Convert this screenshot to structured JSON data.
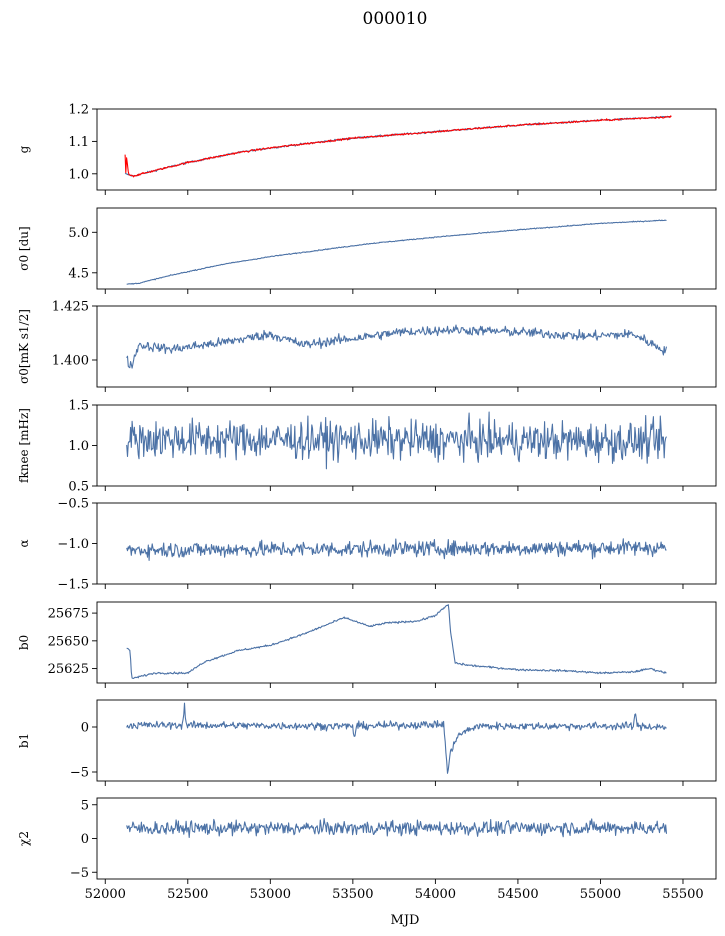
{
  "figure": {
    "title": "000010",
    "xlabel": "MJD"
  },
  "colors": {
    "series": "#4c72a6",
    "overlay": "#ff0000"
  },
  "chart_data": [
    {
      "type": "line",
      "panel": "g",
      "ylabel": "g",
      "xlim": [
        51950,
        55700
      ],
      "ylim": [
        0.95,
        1.2
      ],
      "yticks": [
        1.0,
        1.1,
        1.2
      ],
      "ytick_labels": [
        "1.0",
        "1.1",
        "1.2"
      ],
      "show_xtick_labels": false,
      "series": [
        {
          "color": "#4c72a6",
          "kind": "trend",
          "x": [
            52120,
            52170,
            52300,
            52500,
            52800,
            53000,
            53500,
            54000,
            54500,
            55000,
            55300,
            55430
          ],
          "y": [
            1.0,
            0.993,
            1.01,
            1.035,
            1.065,
            1.08,
            1.11,
            1.13,
            1.15,
            1.165,
            1.173,
            1.176
          ],
          "noise": 0.002
        },
        {
          "color": "#ff0000",
          "kind": "trend",
          "x": [
            52120,
            52125,
            52130,
            52140,
            52170,
            52300,
            52500,
            52800,
            53000,
            53500,
            54000,
            54500,
            55000,
            55300,
            55430
          ],
          "y": [
            1.06,
            1.0,
            1.055,
            1.0,
            0.993,
            1.01,
            1.035,
            1.065,
            1.08,
            1.11,
            1.13,
            1.15,
            1.165,
            1.173,
            1.176
          ],
          "noise": 0.002
        }
      ]
    },
    {
      "type": "line",
      "panel": "sigma0",
      "ylabel": "σ0 [du]",
      "xlim": [
        51950,
        55700
      ],
      "ylim": [
        4.3,
        5.3
      ],
      "yticks": [
        4.5,
        5.0
      ],
      "ytick_labels": [
        "4.5",
        "5.0"
      ],
      "show_xtick_labels": false,
      "series": [
        {
          "color": "#4c72a6",
          "kind": "trend",
          "x": [
            52130,
            52200,
            52400,
            52700,
            53000,
            53300,
            53600,
            54000,
            54500,
            55000,
            55400
          ],
          "y": [
            4.36,
            4.37,
            4.47,
            4.6,
            4.7,
            4.78,
            4.86,
            4.94,
            5.03,
            5.11,
            5.15
          ],
          "noise": 0.004
        }
      ]
    },
    {
      "type": "line",
      "panel": "sigma0-time",
      "ylabel": "σ0[mK s1/2]",
      "xlim": [
        51950,
        55700
      ],
      "ylim": [
        1.3875,
        1.425
      ],
      "yticks": [
        1.4,
        1.425
      ],
      "ytick_labels": [
        "1.400",
        "1.425"
      ],
      "show_xtick_labels": false,
      "series": [
        {
          "color": "#4c72a6",
          "kind": "trend",
          "x": [
            52130,
            52160,
            52200,
            52400,
            52700,
            53000,
            53200,
            53500,
            53800,
            54100,
            54500,
            54900,
            55200,
            55400
          ],
          "y": [
            1.4,
            1.397,
            1.407,
            1.405,
            1.408,
            1.412,
            1.407,
            1.41,
            1.413,
            1.414,
            1.413,
            1.411,
            1.412,
            1.404
          ],
          "noise": 0.0016
        }
      ]
    },
    {
      "type": "line",
      "panel": "fknee",
      "ylabel": "fknee [mHz]",
      "xlim": [
        51950,
        55700
      ],
      "ylim": [
        0.5,
        1.5
      ],
      "yticks": [
        0.5,
        1.0,
        1.5
      ],
      "ytick_labels": [
        "0.5",
        "1.0",
        "1.5"
      ],
      "show_xtick_labels": false,
      "series": [
        {
          "color": "#4c72a6",
          "kind": "noise",
          "x": [
            52130,
            55400
          ],
          "y": [
            1.08,
            1.05
          ],
          "noise": 0.17
        }
      ]
    },
    {
      "type": "line",
      "panel": "alpha",
      "ylabel": "α",
      "xlim": [
        51950,
        55700
      ],
      "ylim": [
        -1.5,
        -0.5
      ],
      "yticks": [
        -1.5,
        -1.0,
        -0.5
      ],
      "ytick_labels": [
        "−1.5",
        "−1.0",
        "−0.5"
      ],
      "show_xtick_labels": false,
      "series": [
        {
          "color": "#4c72a6",
          "kind": "noise",
          "x": [
            52130,
            55400
          ],
          "y": [
            -1.08,
            -1.05
          ],
          "noise": 0.07
        }
      ]
    },
    {
      "type": "line",
      "panel": "b0",
      "ylabel": "b0",
      "xlim": [
        51950,
        55700
      ],
      "ylim": [
        25612,
        25685
      ],
      "yticks": [
        25625,
        25650,
        25675
      ],
      "ytick_labels": [
        "25625",
        "25650",
        "25675"
      ],
      "show_xtick_labels": false,
      "series": [
        {
          "color": "#4c72a6",
          "kind": "trend",
          "x": [
            52130,
            52150,
            52160,
            52300,
            52500,
            52600,
            52800,
            53000,
            53200,
            53450,
            53600,
            53700,
            53900,
            54000,
            54080,
            54090,
            54120,
            54200,
            54500,
            54800,
            55000,
            55200,
            55300,
            55400
          ],
          "y": [
            25643,
            25642,
            25616,
            25621,
            25621,
            25631,
            25641,
            25646,
            25656,
            25671,
            25663,
            25666,
            25668,
            25673,
            25683,
            25660,
            25630,
            25628,
            25624,
            25623,
            25621,
            25622,
            25625,
            25621
          ],
          "noise": 0.6
        }
      ]
    },
    {
      "type": "line",
      "panel": "b1",
      "ylabel": "b1",
      "xlim": [
        51950,
        55700
      ],
      "ylim": [
        -6,
        3
      ],
      "yticks": [
        -5,
        0
      ],
      "ytick_labels": [
        "−5",
        "0"
      ],
      "show_xtick_labels": false,
      "series": [
        {
          "color": "#4c72a6",
          "kind": "trend",
          "x": [
            52130,
            52470,
            52480,
            52490,
            53500,
            53510,
            53520,
            54050,
            54075,
            54090,
            54110,
            54150,
            54250,
            55200,
            55210,
            55220,
            55400
          ],
          "y": [
            0.2,
            0.2,
            2.8,
            0.2,
            0.1,
            -1.5,
            0.1,
            0.3,
            -5.3,
            -3.0,
            -1.8,
            -0.8,
            0.1,
            0.1,
            1.8,
            0.1,
            0.0
          ],
          "noise": 0.3
        }
      ]
    },
    {
      "type": "line",
      "panel": "chi2",
      "ylabel": "χ2",
      "xlim": [
        51950,
        55700
      ],
      "ylim": [
        -6,
        6
      ],
      "yticks": [
        -5,
        0,
        5
      ],
      "ytick_labels": [
        "−5",
        "0",
        "5"
      ],
      "show_xtick_labels": true,
      "xticks": [
        52000,
        52500,
        53000,
        53500,
        54000,
        54500,
        55000,
        55500
      ],
      "xtick_labels": [
        "52000",
        "52500",
        "53000",
        "53500",
        "54000",
        "54500",
        "55000",
        "55500"
      ],
      "series": [
        {
          "color": "#4c72a6",
          "kind": "noise",
          "x": [
            52130,
            55400
          ],
          "y": [
            1.5,
            1.6
          ],
          "noise": 0.75
        }
      ]
    }
  ]
}
